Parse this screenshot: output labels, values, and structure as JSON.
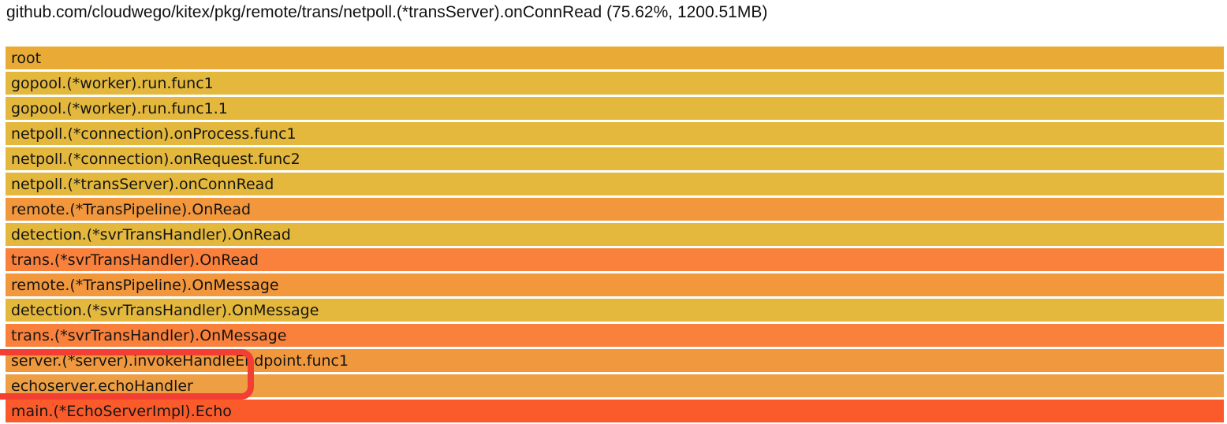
{
  "title": "github.com/cloudwego/kitex/pkg/remote/trans/netpoll.(*transServer).onConnRead (75.62%, 1200.51MB)",
  "selected_frame": {
    "full_name": "github.com/cloudwego/kitex/pkg/remote/trans/netpoll.(*transServer).onConnRead",
    "percent": "75.62%",
    "value": "1200.51MB"
  },
  "chart_data": {
    "type": "bar",
    "subtype": "flamegraph",
    "title": "github.com/cloudwego/kitex/pkg/remote/trans/netpoll.(*transServer).onConnRead (75.62%, 1200.51MB)",
    "orientation": "horizontal-stack",
    "categories": [
      "root",
      "gopool.(*worker).run.func1",
      "gopool.(*worker).run.func1.1",
      "netpoll.(*connection).onProcess.func1",
      "netpoll.(*connection).onRequest.func2",
      "netpoll.(*transServer).onConnRead",
      "remote.(*TransPipeline).OnRead",
      "detection.(*svrTransHandler).OnRead",
      "trans.(*svrTransHandler).OnRead",
      "remote.(*TransPipeline).OnMessage",
      "detection.(*svrTransHandler).OnMessage",
      "trans.(*svrTransHandler).OnMessage",
      "server.(*server).invokeHandleEndpoint.func1",
      "echoserver.echoHandler",
      "main.(*EchoServerImpl).Echo"
    ],
    "values": [
      100,
      100,
      100,
      100,
      100,
      100,
      100,
      100,
      100,
      100,
      100,
      100,
      100,
      100,
      100
    ],
    "value_unit": "percent-width-of-parent"
  },
  "flamegraph": {
    "frames": [
      {
        "label": "root",
        "color": "#e9ab35"
      },
      {
        "label": "gopool.(*worker).run.func1",
        "color": "#e4b83c"
      },
      {
        "label": "gopool.(*worker).run.func1.1",
        "color": "#e4b83c"
      },
      {
        "label": "netpoll.(*connection).onProcess.func1",
        "color": "#e4b83c"
      },
      {
        "label": "netpoll.(*connection).onRequest.func2",
        "color": "#e4b83c"
      },
      {
        "label": "netpoll.(*transServer).onConnRead",
        "color": "#e4b83c"
      },
      {
        "label": "remote.(*TransPipeline).OnRead",
        "color": "#f2973c"
      },
      {
        "label": "detection.(*svrTransHandler).OnRead",
        "color": "#e4b83c"
      },
      {
        "label": "trans.(*svrTransHandler).OnRead",
        "color": "#f9813b"
      },
      {
        "label": "remote.(*TransPipeline).OnMessage",
        "color": "#f2973c"
      },
      {
        "label": "detection.(*svrTransHandler).OnMessage",
        "color": "#e4b83c"
      },
      {
        "label": "trans.(*svrTransHandler).OnMessage",
        "color": "#f9813b"
      },
      {
        "label": "server.(*server).invokeHandleEndpoint.func1",
        "color": "#f0983e"
      },
      {
        "label": "echoserver.echoHandler",
        "color": "#ef9f43"
      },
      {
        "label": "main.(*EchoServerImpl).Echo",
        "color": "#fb5b2b"
      }
    ]
  },
  "annotation": {
    "shape": "rounded-rectangle",
    "color": "#f23e33",
    "highlighted_frames": [
      "server.(*server).invokeHandleEndpoint.func1",
      "echoserver.echoHandler"
    ]
  }
}
